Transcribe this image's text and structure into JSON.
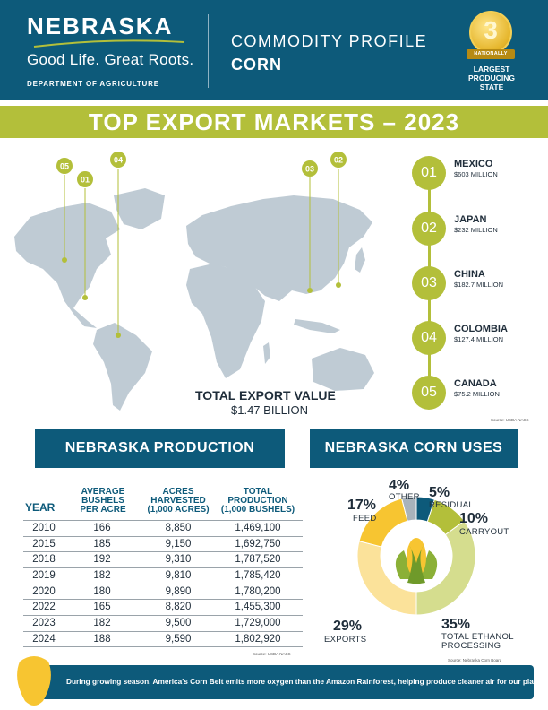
{
  "header": {
    "brand_word": "NEBRASKA",
    "tagline": "Good Life. Great Roots.",
    "department": "DEPARTMENT OF AGRICULTURE",
    "profile_label": "COMMODITY PROFILE",
    "commodity": "CORN",
    "medal_rank": "3",
    "medal_ribbon": "NATIONALLY",
    "medal_caption_line1": "LARGEST",
    "medal_caption_line2": "PRODUCING",
    "medal_caption_line3": "STATE"
  },
  "banner": {
    "title": "TOP EXPORT MARKETS – 2023"
  },
  "map": {
    "pins": [
      {
        "rank": "05",
        "market": "CANADA"
      },
      {
        "rank": "01",
        "market": "MEXICO"
      },
      {
        "rank": "04",
        "market": "COLOMBIA"
      },
      {
        "rank": "03",
        "market": "CHINA"
      },
      {
        "rank": "02",
        "market": "JAPAN"
      }
    ],
    "total_label": "TOTAL EXPORT VALUE",
    "total_value": "$1.47 BILLION"
  },
  "markets": [
    {
      "rank": "01",
      "name": "MEXICO",
      "value": "$603 MILLION"
    },
    {
      "rank": "02",
      "name": "JAPAN",
      "value": "$232 MILLION"
    },
    {
      "rank": "03",
      "name": "CHINA",
      "value": "$182.7 MILLION"
    },
    {
      "rank": "04",
      "name": "COLOMBIA",
      "value": "$127.4 MILLION"
    },
    {
      "rank": "05",
      "name": "CANADA",
      "value": "$75.2 MILLION"
    }
  ],
  "sources": {
    "exports": "Source: USDA NASS",
    "production": "Source: USDA NASS",
    "uses": "Source: Nebraska Corn Board"
  },
  "production": {
    "title": "NEBRASKA PRODUCTION",
    "headers": {
      "year": "YEAR",
      "bushels_1": "AVERAGE",
      "bushels_2": "BUSHELS",
      "bushels_3": "PER ACRE",
      "acres_1": "ACRES",
      "acres_2": "HARVESTED",
      "acres_3": "(1,000 ACRES)",
      "total_1": "TOTAL",
      "total_2": "PRODUCTION",
      "total_3": "(1,000 BUSHELS)"
    },
    "rows": [
      {
        "year": "2010",
        "bushels": "166",
        "acres": "8,850",
        "total": "1,469,100"
      },
      {
        "year": "2015",
        "bushels": "185",
        "acres": "9,150",
        "total": "1,692,750"
      },
      {
        "year": "2018",
        "bushels": "192",
        "acres": "9,310",
        "total": "1,787,520"
      },
      {
        "year": "2019",
        "bushels": "182",
        "acres": "9,810",
        "total": "1,785,420"
      },
      {
        "year": "2020",
        "bushels": "180",
        "acres": "9,890",
        "total": "1,780,200"
      },
      {
        "year": "2022",
        "bushels": "165",
        "acres": "8,820",
        "total": "1,455,300"
      },
      {
        "year": "2023",
        "bushels": "182",
        "acres": "9,500",
        "total": "1,729,000"
      },
      {
        "year": "2024",
        "bushels": "188",
        "acres": "9,590",
        "total": "1,802,920"
      }
    ]
  },
  "uses": {
    "title": "NEBRASKA CORN USES",
    "items": [
      {
        "pct": "4%",
        "label": "OTHER"
      },
      {
        "pct": "5%",
        "label": "RESIDUAL"
      },
      {
        "pct": "10%",
        "label": "CARRYOUT"
      },
      {
        "pct": "35%",
        "label_1": "TOTAL ETHANOL",
        "label_2": "PROCESSING"
      },
      {
        "pct": "29%",
        "label": "EXPORTS"
      },
      {
        "pct": "17%",
        "label": "FEED"
      }
    ]
  },
  "chart_data": {
    "type": "pie",
    "title": "NEBRASKA CORN USES",
    "categories": [
      "OTHER",
      "RESIDUAL",
      "CARRYOUT",
      "TOTAL ETHANOL PROCESSING",
      "EXPORTS",
      "FEED"
    ],
    "values": [
      4,
      5,
      10,
      35,
      29,
      17
    ],
    "colors": [
      "#a9b3bb",
      "#0d5a7a",
      "#b3bf3a",
      "#d5dd8e",
      "#fbe29a",
      "#f7c531"
    ]
  },
  "footer": {
    "text": "During growing season, America's Corn Belt emits more oxygen than the Amazon Rainforest, helping produce cleaner air for our planet."
  },
  "colors": {
    "navy": "#0d5a7a",
    "olive": "#b3bf3a",
    "map_gray": "#bfcbd4"
  }
}
